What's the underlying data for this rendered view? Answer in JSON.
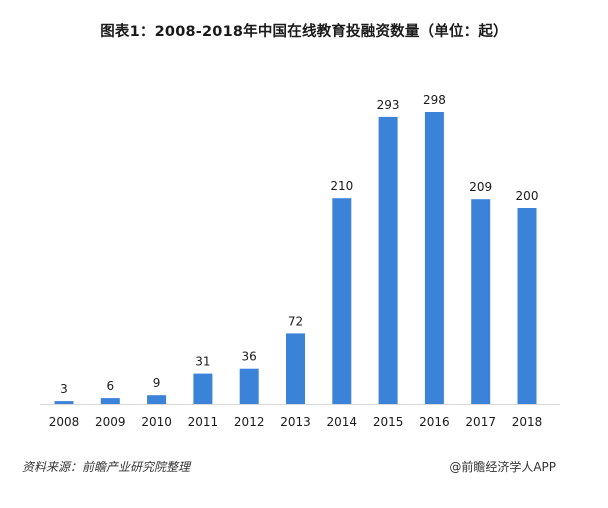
{
  "title": "图表1：2008-2018年中国在线教育投融资数量（单位：起）",
  "source": "资料来源：前瞻产业研究院整理",
  "credit": "@前瞻经济学人APP",
  "colors": {
    "bar": "#3b82d9",
    "text": "#1a1a1a",
    "axis": "#d9d9d9"
  },
  "chart_data": {
    "type": "bar",
    "title": "图表1：2008-2018年中国在线教育投融资数量（单位：起）",
    "categories": [
      "2008",
      "2009",
      "2010",
      "2011",
      "2012",
      "2013",
      "2014",
      "2015",
      "2016",
      "2017",
      "2018"
    ],
    "values": [
      3,
      6,
      9,
      31,
      36,
      72,
      210,
      293,
      298,
      209,
      200
    ],
    "xlabel": "",
    "ylabel": "",
    "ylim": [
      0,
      300
    ],
    "grid": false,
    "legend": "none"
  }
}
